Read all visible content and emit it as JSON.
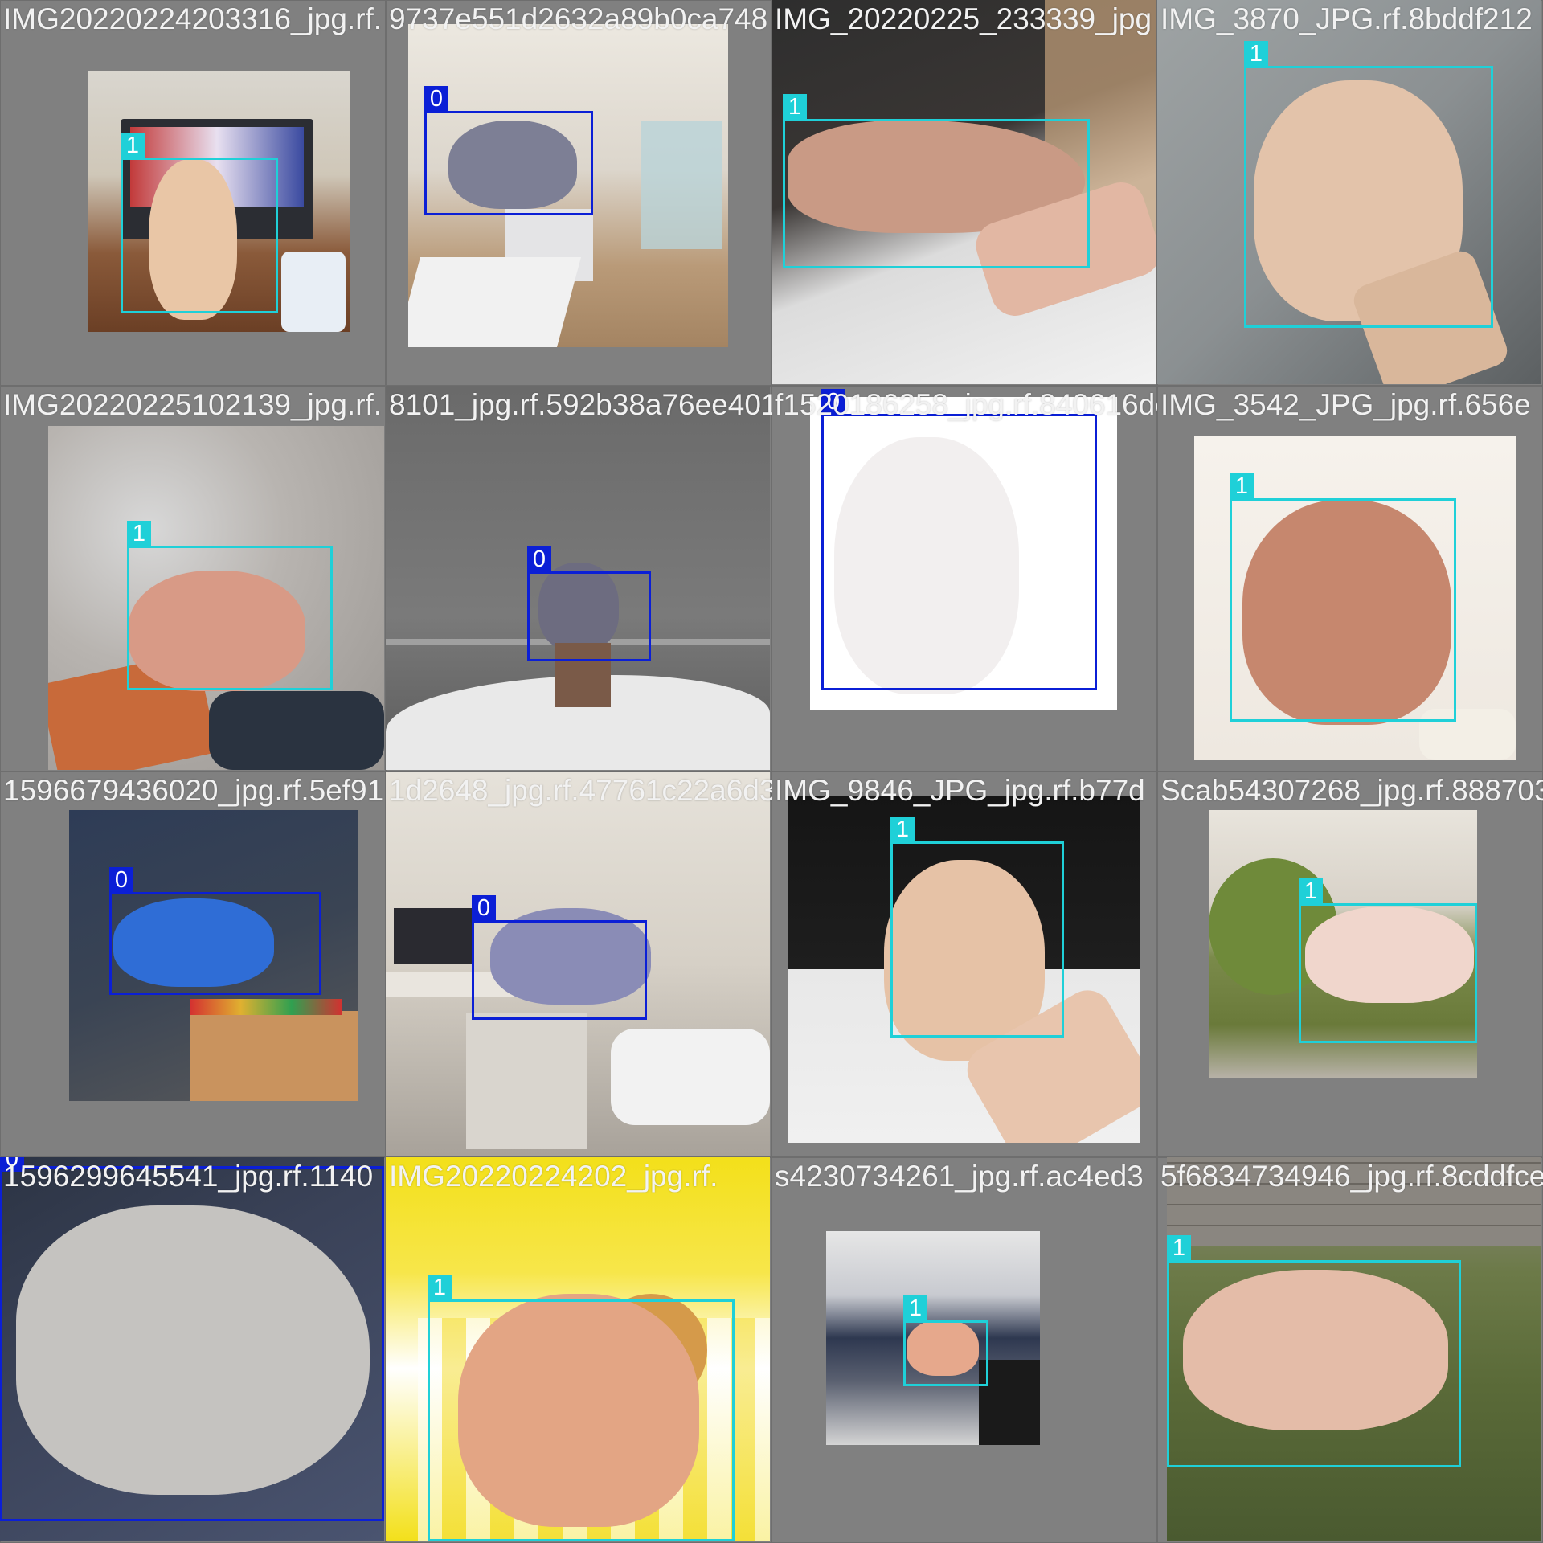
{
  "mosaic": {
    "tiles": [
      {
        "filename": "IMG20220224203316_jpg.rf.",
        "boxes": [
          {
            "cls": "1"
          }
        ]
      },
      {
        "filename": "9737e551d2632a89b0ca748",
        "boxes": [
          {
            "cls": "0"
          }
        ]
      },
      {
        "filename": "IMG_20220225_233339_jpg",
        "boxes": [
          {
            "cls": "1"
          }
        ]
      },
      {
        "filename": "IMG_3870_JPG.rf.8bddf212",
        "boxes": [
          {
            "cls": "1"
          }
        ]
      },
      {
        "filename": "IMG20220225102139_jpg.rf.",
        "boxes": [
          {
            "cls": "1"
          }
        ]
      },
      {
        "filename": "8101_jpg.rf.592b38a76ee401",
        "boxes": [
          {
            "cls": "0"
          }
        ]
      },
      {
        "filename": "f1520186258_jpg.rf.840616de",
        "boxes": [
          {
            "cls": "0"
          }
        ]
      },
      {
        "filename": "IMG_3542_JPG_jpg.rf.656e",
        "boxes": [
          {
            "cls": "1"
          }
        ]
      },
      {
        "filename": "1596679436020_jpg.rf.5ef91",
        "boxes": [
          {
            "cls": "0"
          }
        ]
      },
      {
        "filename": "1d2648_jpg.rf.47761c22a6d3",
        "boxes": [
          {
            "cls": "0"
          }
        ]
      },
      {
        "filename": "IMG_9846_JPG_jpg.rf.b77d",
        "boxes": [
          {
            "cls": "1"
          }
        ]
      },
      {
        "filename": "Scab54307268_jpg.rf.888703",
        "boxes": [
          {
            "cls": "1"
          }
        ]
      },
      {
        "filename": "1596299645541_jpg.rf.1140",
        "boxes": [
          {
            "cls": "0"
          }
        ]
      },
      {
        "filename": "IMG20220224202_jpg.rf.",
        "boxes": [
          {
            "cls": "1"
          }
        ]
      },
      {
        "filename": "s4230734261_jpg.rf.ac4ed3",
        "boxes": [
          {
            "cls": "1"
          }
        ]
      },
      {
        "filename": "5f6834734946_jpg.rf.8cddfce",
        "boxes": [
          {
            "cls": "1"
          }
        ]
      }
    ]
  },
  "colors": {
    "class_0": "#0b1fd6",
    "class_1": "#1fd0d8",
    "tile_bg": "#808080",
    "label_text": "#ffffff"
  }
}
